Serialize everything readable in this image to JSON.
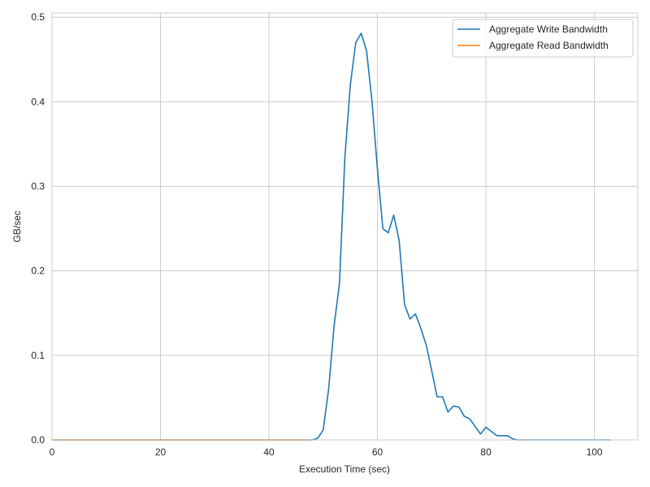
{
  "chart_data": {
    "type": "line",
    "xlabel": "Execution Time (sec)",
    "ylabel": "GB/sec",
    "xlim": [
      0,
      108
    ],
    "ylim": [
      0,
      0.505
    ],
    "xticks": [
      0,
      20,
      40,
      60,
      80,
      100
    ],
    "yticks": [
      0.0,
      0.1,
      0.2,
      0.3,
      0.4,
      0.5
    ],
    "grid": true,
    "legend_position": "top-right",
    "series": [
      {
        "name": "Aggregate Write Bandwidth",
        "color": "#1f77b4",
        "x": [
          0,
          47,
          48,
          49,
          50,
          51,
          52,
          53,
          54,
          55,
          56,
          57,
          58,
          59,
          60,
          61,
          62,
          63,
          64,
          65,
          66,
          67,
          68,
          69,
          70,
          71,
          72,
          73,
          74,
          75,
          76,
          77,
          78,
          79,
          80,
          81,
          82,
          83,
          84,
          85,
          86,
          87,
          88,
          89,
          90,
          100,
          103
        ],
        "y": [
          0,
          0,
          0,
          0.002,
          0.012,
          0.06,
          0.135,
          0.185,
          0.335,
          0.42,
          0.47,
          0.481,
          0.46,
          0.4,
          0.32,
          0.25,
          0.245,
          0.266,
          0.236,
          0.16,
          0.143,
          0.149,
          0.132,
          0.112,
          0.082,
          0.051,
          0.051,
          0.033,
          0.04,
          0.039,
          0.028,
          0.025,
          0.016,
          0.007,
          0.015,
          0.01,
          0.005,
          0.005,
          0.005,
          0.001,
          0,
          0,
          0,
          0,
          0,
          0,
          0
        ]
      },
      {
        "name": "Aggregate Read Bandwidth",
        "color": "#ff7f0e",
        "x": [
          0,
          47
        ],
        "y": [
          0,
          0
        ]
      }
    ]
  }
}
